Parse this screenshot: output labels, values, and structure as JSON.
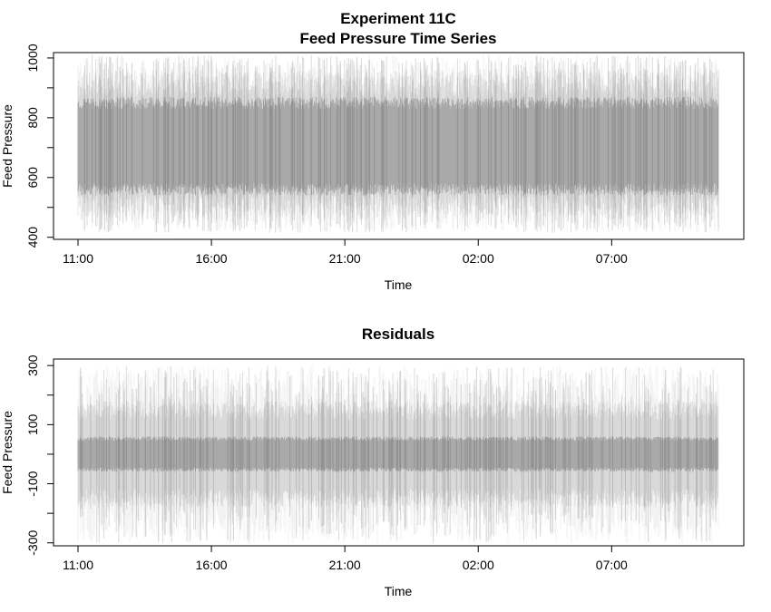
{
  "chart_data": [
    {
      "type": "line",
      "title_lines": [
        "Experiment 11C",
        "Feed Pressure Time Series"
      ],
      "xlabel": "Time",
      "ylabel": "Feed Pressure",
      "x_ticks": [
        "11:00",
        "16:00",
        "21:00",
        "02:00",
        "07:00"
      ],
      "x_range_hours": [
        0,
        24
      ],
      "x_tick_hours": [
        0,
        5,
        10,
        15,
        20
      ],
      "yticks_labeled": [
        400,
        600,
        800,
        1000
      ],
      "yticks_minor": [
        500,
        700,
        900
      ],
      "ylim": [
        393,
        1018
      ],
      "series": [
        {
          "color": "#000000",
          "center": 710,
          "core_range": [
            540,
            870
          ],
          "typical_range": [
            460,
            960
          ],
          "extreme_range": [
            415,
            1010
          ]
        }
      ],
      "grid": false,
      "legend": "none"
    },
    {
      "type": "line",
      "title_lines": [
        "Residuals"
      ],
      "xlabel": "Time",
      "ylabel": "Feed Pressure",
      "x_ticks": [
        "11:00",
        "16:00",
        "21:00",
        "02:00",
        "07:00"
      ],
      "x_range_hours": [
        0,
        24
      ],
      "x_tick_hours": [
        0,
        5,
        10,
        15,
        20
      ],
      "yticks_labeled": [
        -300,
        -100,
        100,
        300
      ],
      "yticks_minor": [
        -200,
        0,
        200
      ],
      "ylim": [
        -310,
        322
      ],
      "series": [
        {
          "color": "#000000",
          "center": 0,
          "core_range": [
            -60,
            60
          ],
          "typical_range": [
            -180,
            180
          ],
          "extreme_range": [
            -300,
            300
          ]
        }
      ],
      "grid": false,
      "legend": "none"
    }
  ]
}
